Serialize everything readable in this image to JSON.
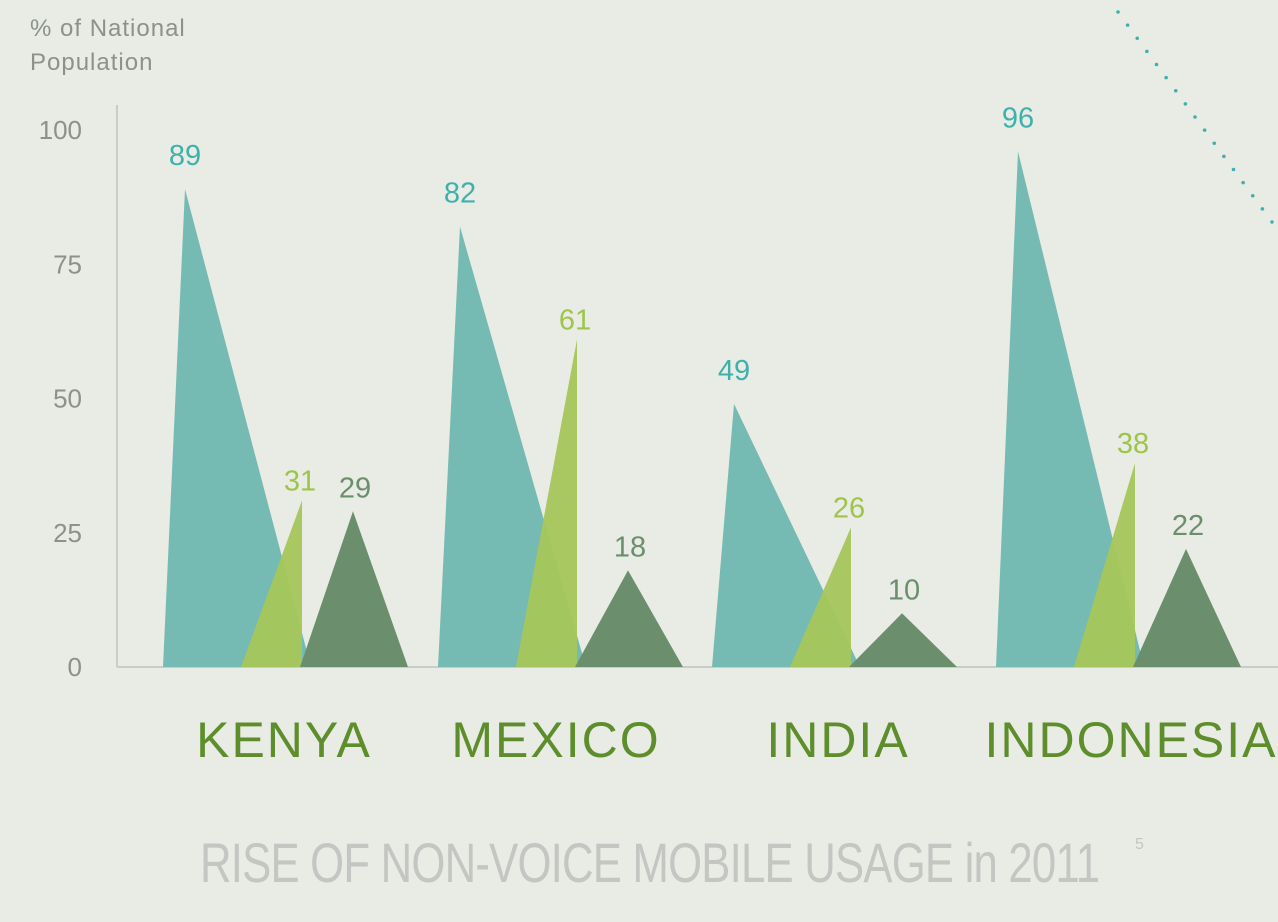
{
  "chart_data": {
    "type": "bar",
    "title": "RISE OF NON-VOICE MOBILE USAGE in 2011",
    "title_footnote": "5",
    "ylabel_lines": [
      "% of National",
      "Population"
    ],
    "ylim": [
      0,
      100
    ],
    "yticks": [
      "0",
      "25",
      "50",
      "75",
      "100"
    ],
    "categories": [
      "KENYA",
      "MEXICO",
      "INDIA",
      "INDONESIA"
    ],
    "series": [
      {
        "values": [
          89,
          82,
          49,
          96
        ],
        "color": "#76bbb3",
        "label_color": "#3fb1ad"
      },
      {
        "values": [
          31,
          61,
          26,
          38
        ],
        "color": "#a5c65a",
        "label_color": "#9ec44a"
      },
      {
        "values": [
          29,
          18,
          10,
          22
        ],
        "color": "#6b8f6c",
        "label_color": "#6b8f6c"
      }
    ],
    "category_color": "#5e8e2c",
    "grid": false
  }
}
